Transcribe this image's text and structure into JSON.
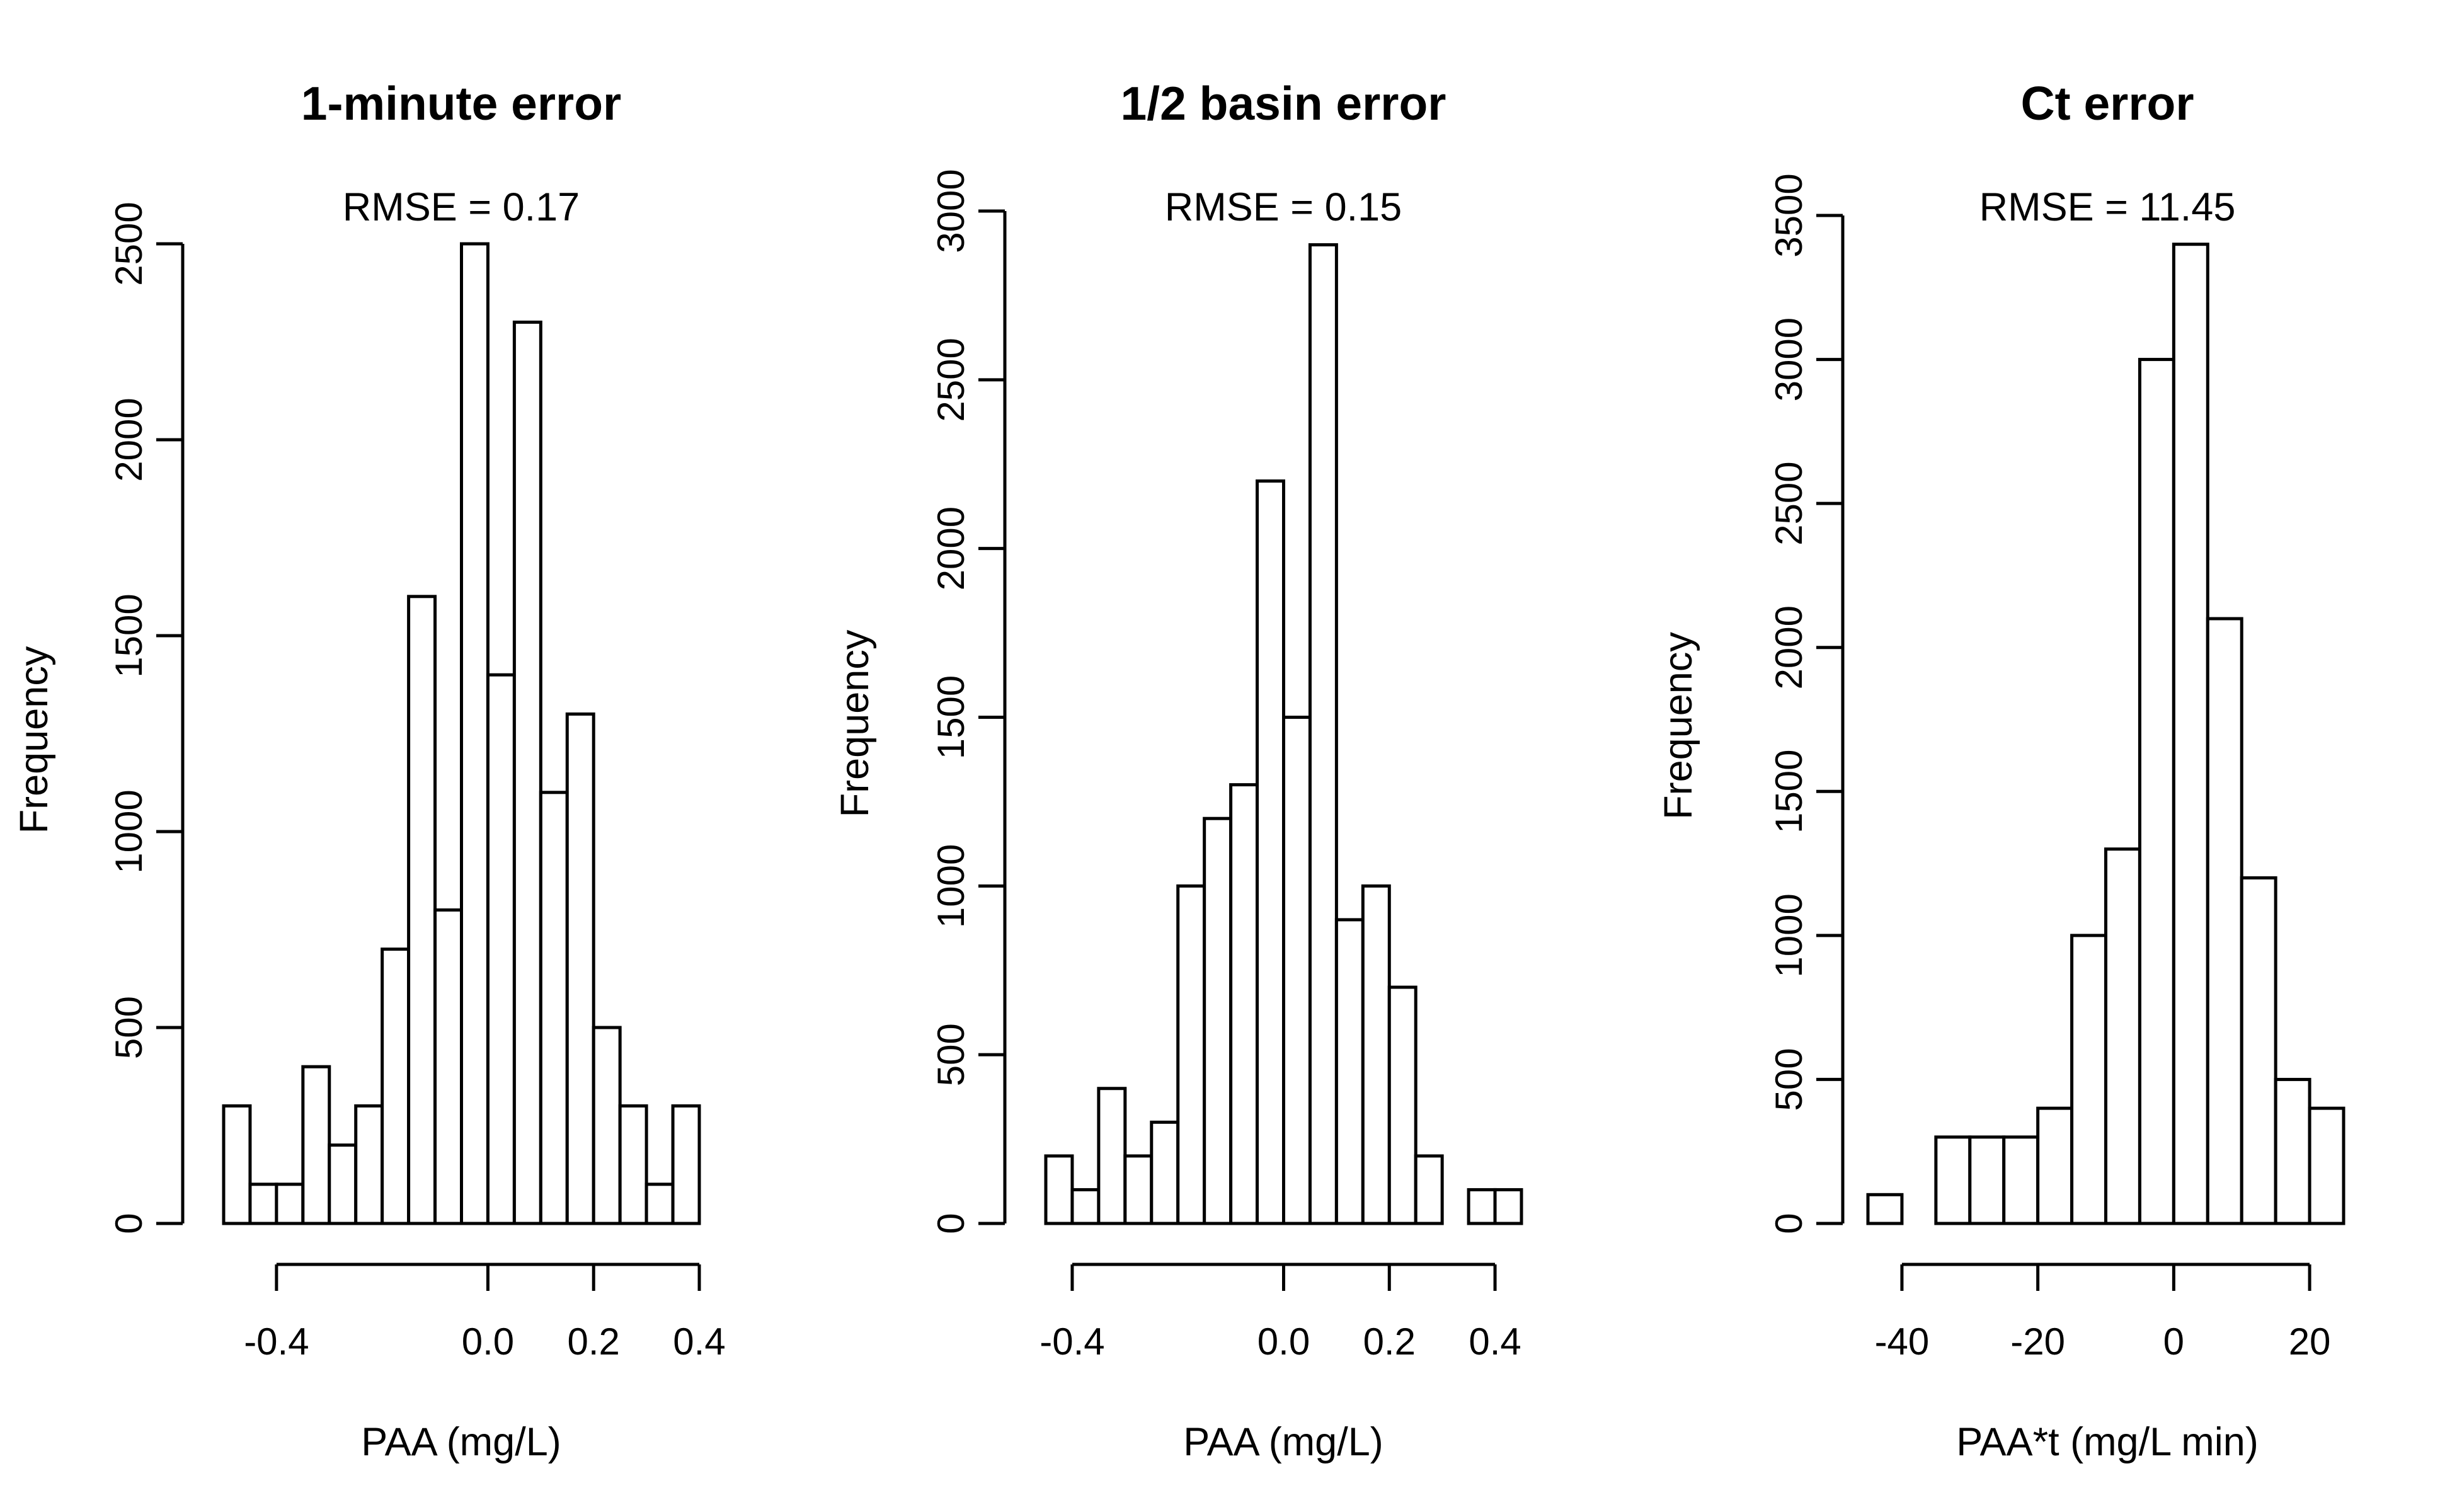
{
  "chart_data": [
    {
      "type": "bar",
      "title": "1-minute error",
      "subtitle": "RMSE = 0.17",
      "xlabel": "PAA (mg/L)",
      "ylabel": "Frequency",
      "x_ticks": [
        "-0.4",
        "0.0",
        "0.2",
        "0.4"
      ],
      "x_tick_values": [
        -0.4,
        0.0,
        0.2,
        0.4
      ],
      "y_ticks": [
        "0",
        "500",
        "1000",
        "1500",
        "2000",
        "2500"
      ],
      "y_tick_values": [
        0,
        500,
        1000,
        1500,
        2000,
        2500
      ],
      "bin_edges": [
        -0.5,
        -0.45,
        -0.4,
        -0.35,
        -0.3,
        -0.25,
        -0.2,
        -0.15,
        -0.1,
        -0.05,
        0.0,
        0.05,
        0.1,
        0.15,
        0.2,
        0.25,
        0.3,
        0.35,
        0.4
      ],
      "values": [
        300,
        100,
        100,
        400,
        200,
        300,
        700,
        1600,
        800,
        2500,
        1400,
        2300,
        1100,
        1300,
        500,
        300,
        100,
        300
      ],
      "xlim": [
        -0.5,
        0.4
      ],
      "ylim": [
        0,
        2500
      ]
    },
    {
      "type": "bar",
      "title": "1/2 basin error",
      "subtitle": "RMSE = 0.15",
      "xlabel": "PAA (mg/L)",
      "ylabel": "Frequency",
      "x_ticks": [
        "-0.4",
        "0.0",
        "0.2",
        "0.4"
      ],
      "x_tick_values": [
        -0.4,
        0.0,
        0.2,
        0.4
      ],
      "y_ticks": [
        "0",
        "500",
        "1000",
        "1500",
        "2000",
        "2500",
        "3000"
      ],
      "y_tick_values": [
        0,
        500,
        1000,
        1500,
        2000,
        2500,
        3000
      ],
      "bin_edges": [
        -0.45,
        -0.4,
        -0.35,
        -0.3,
        -0.25,
        -0.2,
        -0.15,
        -0.1,
        -0.05,
        0.0,
        0.05,
        0.1,
        0.15,
        0.2,
        0.25,
        0.3,
        0.35,
        0.4,
        0.45
      ],
      "values": [
        200,
        100,
        400,
        200,
        300,
        1000,
        1200,
        1300,
        2200,
        1500,
        2900,
        900,
        1000,
        700,
        200,
        0,
        100,
        100
      ],
      "xlim": [
        -0.45,
        0.45
      ],
      "ylim": [
        0,
        3000
      ]
    },
    {
      "type": "bar",
      "title": "Ct error",
      "subtitle": "RMSE = 11.45",
      "xlabel": "PAA*t (mg/L min)",
      "ylabel": "Frequency",
      "x_ticks": [
        "-40",
        "-20",
        "0",
        "20"
      ],
      "x_tick_values": [
        -40,
        -20,
        0,
        20
      ],
      "y_ticks": [
        "0",
        "500",
        "1000",
        "1500",
        "2000",
        "2500",
        "3000",
        "3500"
      ],
      "y_tick_values": [
        0,
        500,
        1000,
        1500,
        2000,
        2500,
        3000,
        3500
      ],
      "bin_edges": [
        -45,
        -40,
        -35,
        -30,
        -25,
        -20,
        -15,
        -10,
        -5,
        0,
        5,
        10,
        15,
        20,
        25
      ],
      "values": [
        100,
        0,
        300,
        300,
        300,
        400,
        1000,
        1300,
        3000,
        3400,
        2100,
        1200,
        500,
        400
      ],
      "xlim": [
        -45,
        25
      ],
      "ylim": [
        0,
        3500
      ]
    }
  ]
}
